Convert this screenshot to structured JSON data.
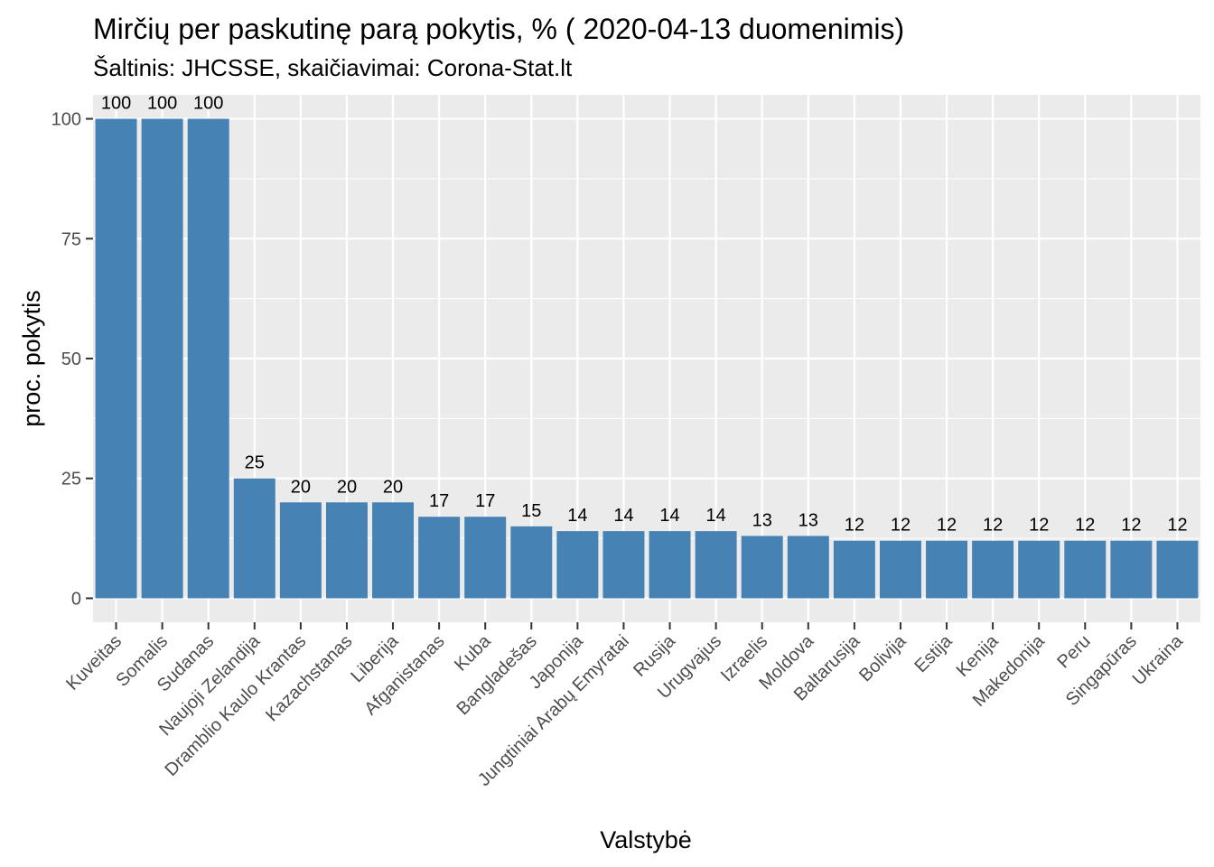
{
  "chart_data": {
    "type": "bar",
    "title": "Mirčių per paskutinę parą pokytis, % ( 2020-04-13 duomenimis)",
    "subtitle": "Šaltinis: JHCSSE, skaičiavimai: Corona-Stat.lt",
    "xlabel": "Valstybė",
    "ylabel": "proc. pokytis",
    "categories": [
      "Kuveitas",
      "Somalis",
      "Sudanas",
      "Naujoji Zelandija",
      "Dramblio Kaulo Krantas",
      "Kazachstanas",
      "Liberija",
      "Afganistanas",
      "Kuba",
      "Bangladešas",
      "Japonija",
      "Jungtiniai Arabų Emyratai",
      "Rusija",
      "Urugvajus",
      "Izraelis",
      "Moldova",
      "Baltarusija",
      "Bolivija",
      "Estija",
      "Kenija",
      "Makedonija",
      "Peru",
      "Singapūras",
      "Ukraina"
    ],
    "values": [
      100,
      100,
      100,
      25,
      20,
      20,
      20,
      17,
      17,
      15,
      14,
      14,
      14,
      14,
      13,
      13,
      12,
      12,
      12,
      12,
      12,
      12,
      12,
      12
    ],
    "data_labels": [
      "100",
      "100",
      "100",
      "25",
      "20",
      "20",
      "20",
      "17",
      "17",
      "15",
      "14",
      "14",
      "14",
      "14",
      "13",
      "13",
      "12",
      "12",
      "12",
      "12",
      "12",
      "12",
      "12",
      "12"
    ],
    "yticks": [
      0,
      25,
      50,
      75,
      100
    ],
    "ytick_labels": [
      "0",
      "25",
      "50",
      "75",
      "100"
    ],
    "ylim": [
      -5,
      105
    ],
    "grid": true,
    "colors": {
      "bar": "#4682b4",
      "panel": "#ebebeb",
      "grid": "#ffffff",
      "tick_text": "#4d4d4d",
      "tick_mark": "#333333"
    }
  }
}
